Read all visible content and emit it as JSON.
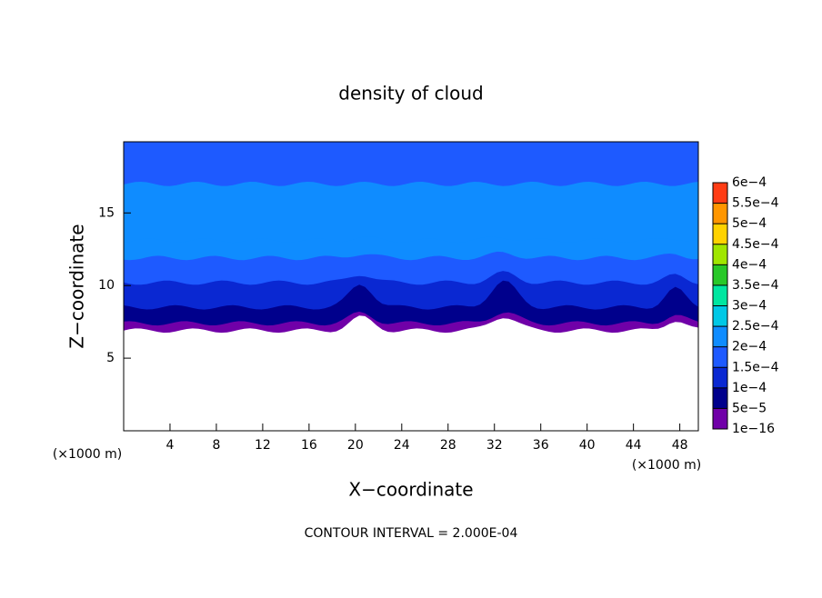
{
  "chart_data": {
    "type": "contour",
    "title": "density of cloud",
    "xlabel": "X−coordinate",
    "ylabel": "Z−coordinate",
    "x_unit": "(×1000 m)",
    "y_unit": "(×1000 m)",
    "note": "CONTOUR INTERVAL = 2.000E-04",
    "xlim": [
      0,
      49.6
    ],
    "ylim": [
      0,
      19.9
    ],
    "xticks": [
      4,
      8,
      12,
      16,
      20,
      24,
      28,
      32,
      36,
      40,
      44,
      48
    ],
    "yticks": [
      5,
      10,
      15
    ],
    "levels": [
      {
        "value": 1e-16,
        "label": "1e−16"
      },
      {
        "value": 5e-05,
        "label": "5e−5"
      },
      {
        "value": 0.0001,
        "label": "1e−4"
      },
      {
        "value": 0.00015,
        "label": "1.5e−4"
      },
      {
        "value": 0.0002,
        "label": "2e−4"
      },
      {
        "value": 0.00025,
        "label": "2.5e−4"
      },
      {
        "value": 0.0003,
        "label": "3e−4"
      },
      {
        "value": 0.00035,
        "label": "3.5e−4"
      },
      {
        "value": 0.0004,
        "label": "4e−4"
      },
      {
        "value": 0.00045,
        "label": "4.5e−4"
      },
      {
        "value": 0.0005,
        "label": "5e−4"
      },
      {
        "value": 0.00055,
        "label": "5.5e−4"
      },
      {
        "value": 0.0006,
        "label": "6e−4"
      }
    ],
    "colors": [
      "#7000a8",
      "#00008c",
      "#0a28d2",
      "#1e5aff",
      "#0f8cff",
      "#00c8e6",
      "#00e6a0",
      "#28c828",
      "#a0e600",
      "#ffd200",
      "#ff9600",
      "#ff3c14"
    ]
  }
}
